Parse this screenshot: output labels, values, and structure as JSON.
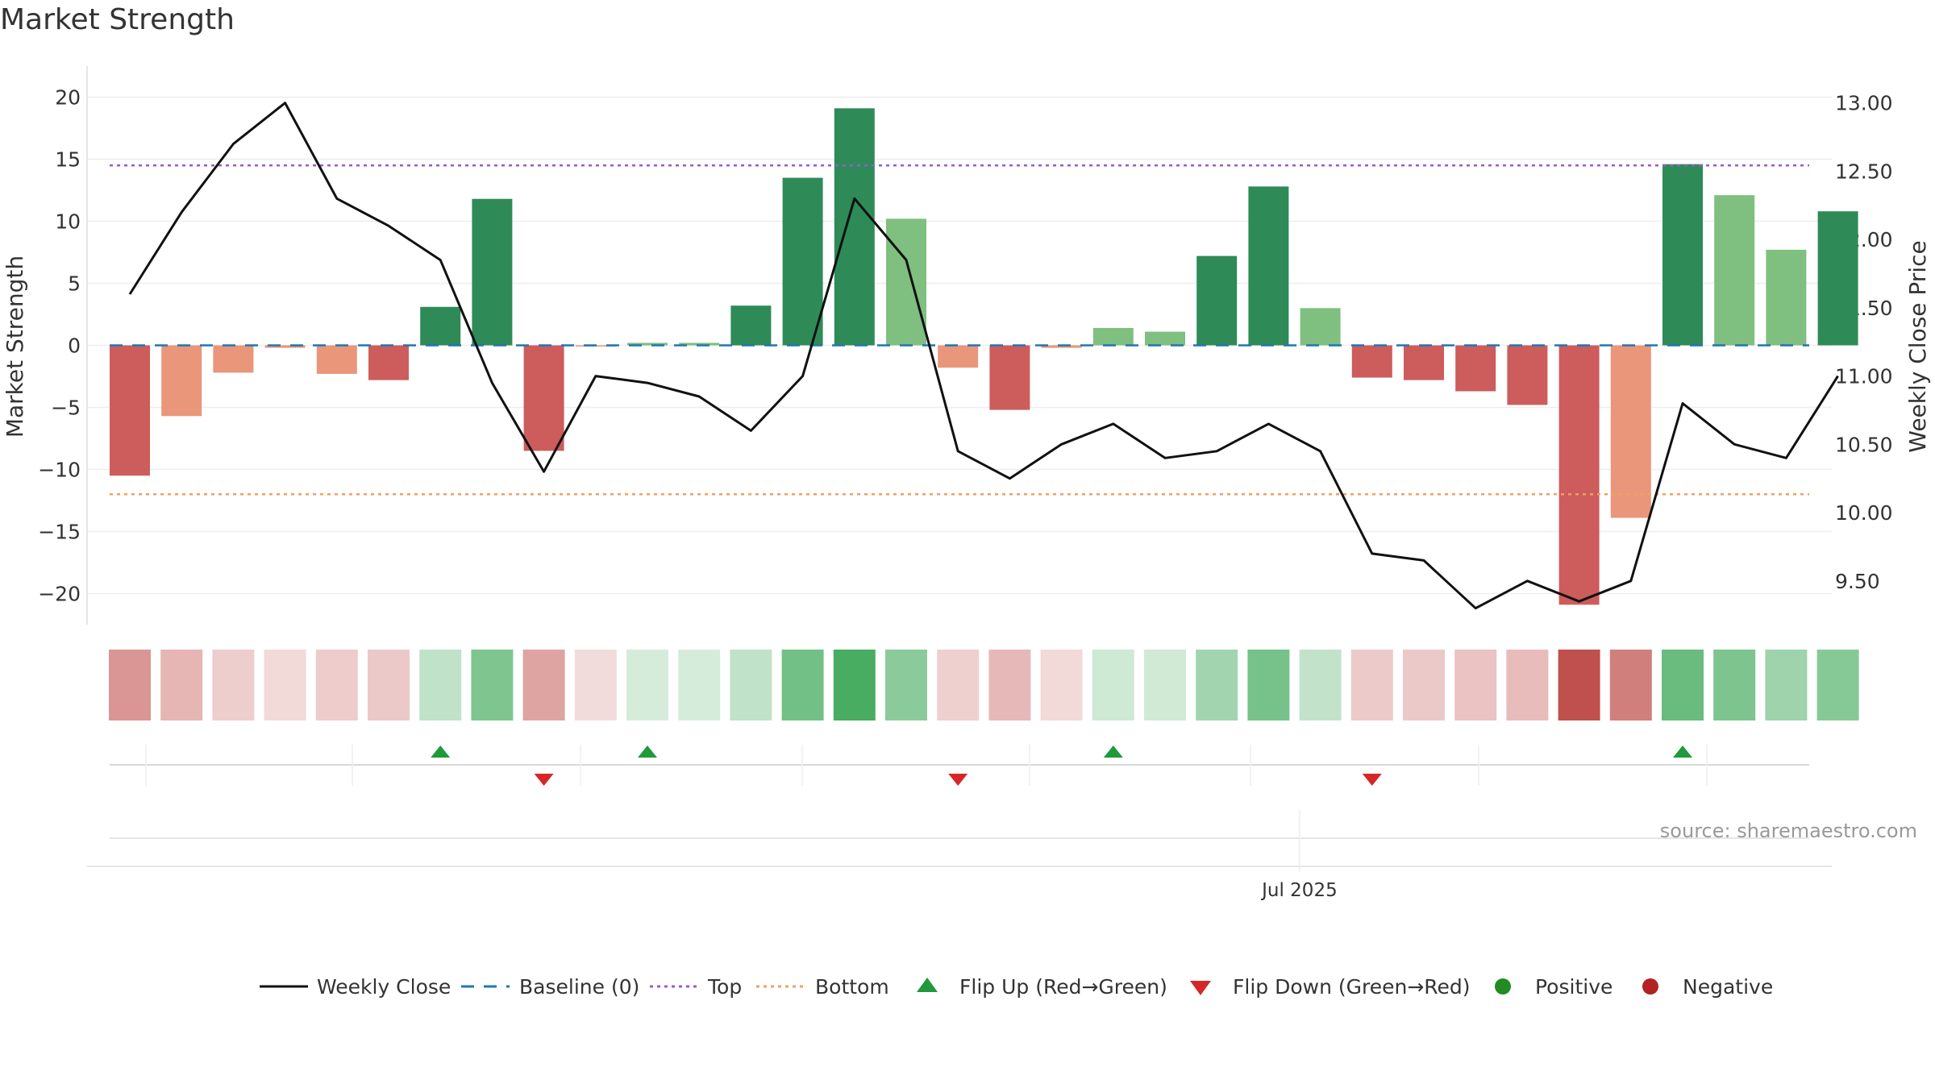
{
  "chart_data": {
    "type": "bar",
    "title": "Market Strength",
    "ylabel": "Market Strength",
    "y2label": "Weekly Close Price",
    "ylim": [
      -22.5,
      22.5
    ],
    "y2lim": [
      9.18,
      13.27
    ],
    "yticks": [
      20,
      15,
      10,
      5,
      0,
      -5,
      -10,
      -15,
      -20
    ],
    "y2ticks": [
      "13.00",
      "12.50",
      "12.00",
      "11.50",
      "11.00",
      "10.50",
      "10.00",
      "9.50"
    ],
    "xtick_label": "Jul 2025",
    "xtick_index": 22.6,
    "top_level": 14.5,
    "bottom_level": -12,
    "baseline": 0,
    "strength": [
      -10.5,
      -5.7,
      -2.2,
      -0.2,
      -2.3,
      -2.8,
      3.1,
      11.8,
      -8.5,
      -0.1,
      0.2,
      0.2,
      3.2,
      13.5,
      19.1,
      10.2,
      -1.8,
      -5.2,
      -0.2,
      1.4,
      1.1,
      7.2,
      12.8,
      3.0,
      -2.6,
      -2.8,
      -3.7,
      -4.8,
      -20.9,
      -13.9,
      14.6,
      12.1,
      7.7,
      10.8
    ],
    "close": [
      11.6,
      12.2,
      12.7,
      13.0,
      12.3,
      12.1,
      11.85,
      10.95,
      10.3,
      11.0,
      10.95,
      10.85,
      10.6,
      11.0,
      12.3,
      11.85,
      10.45,
      10.25,
      10.5,
      10.65,
      10.4,
      10.45,
      10.65,
      10.45,
      9.7,
      9.65,
      9.3,
      9.5,
      9.35,
      9.5,
      10.8,
      10.5,
      10.4,
      11.0
    ],
    "flip_up_indices": [
      6,
      10,
      19,
      30
    ],
    "flip_down_indices": [
      8,
      16,
      24
    ],
    "legend": [
      "Weekly Close",
      "Baseline (0)",
      "Top",
      "Bottom",
      "Flip Up (Red→Green)",
      "Flip Down (Green→Red)",
      "Positive",
      "Negative"
    ],
    "legend_position": "bottom",
    "grid": true,
    "source": "source: sharemaestro.com"
  },
  "colors": {
    "strong_green": "#2e8b57",
    "light_green": "#7fbf7f",
    "strong_red": "#cd5c5c",
    "light_red": "#e9967a",
    "line": "#111111",
    "baseline": "#1f77b4",
    "top": "#9b59d0",
    "bottom": "#f0a060",
    "flip_up": "#1e9a3a",
    "flip_down": "#d62728",
    "positive": "#228b22",
    "negative": "#b22222"
  }
}
